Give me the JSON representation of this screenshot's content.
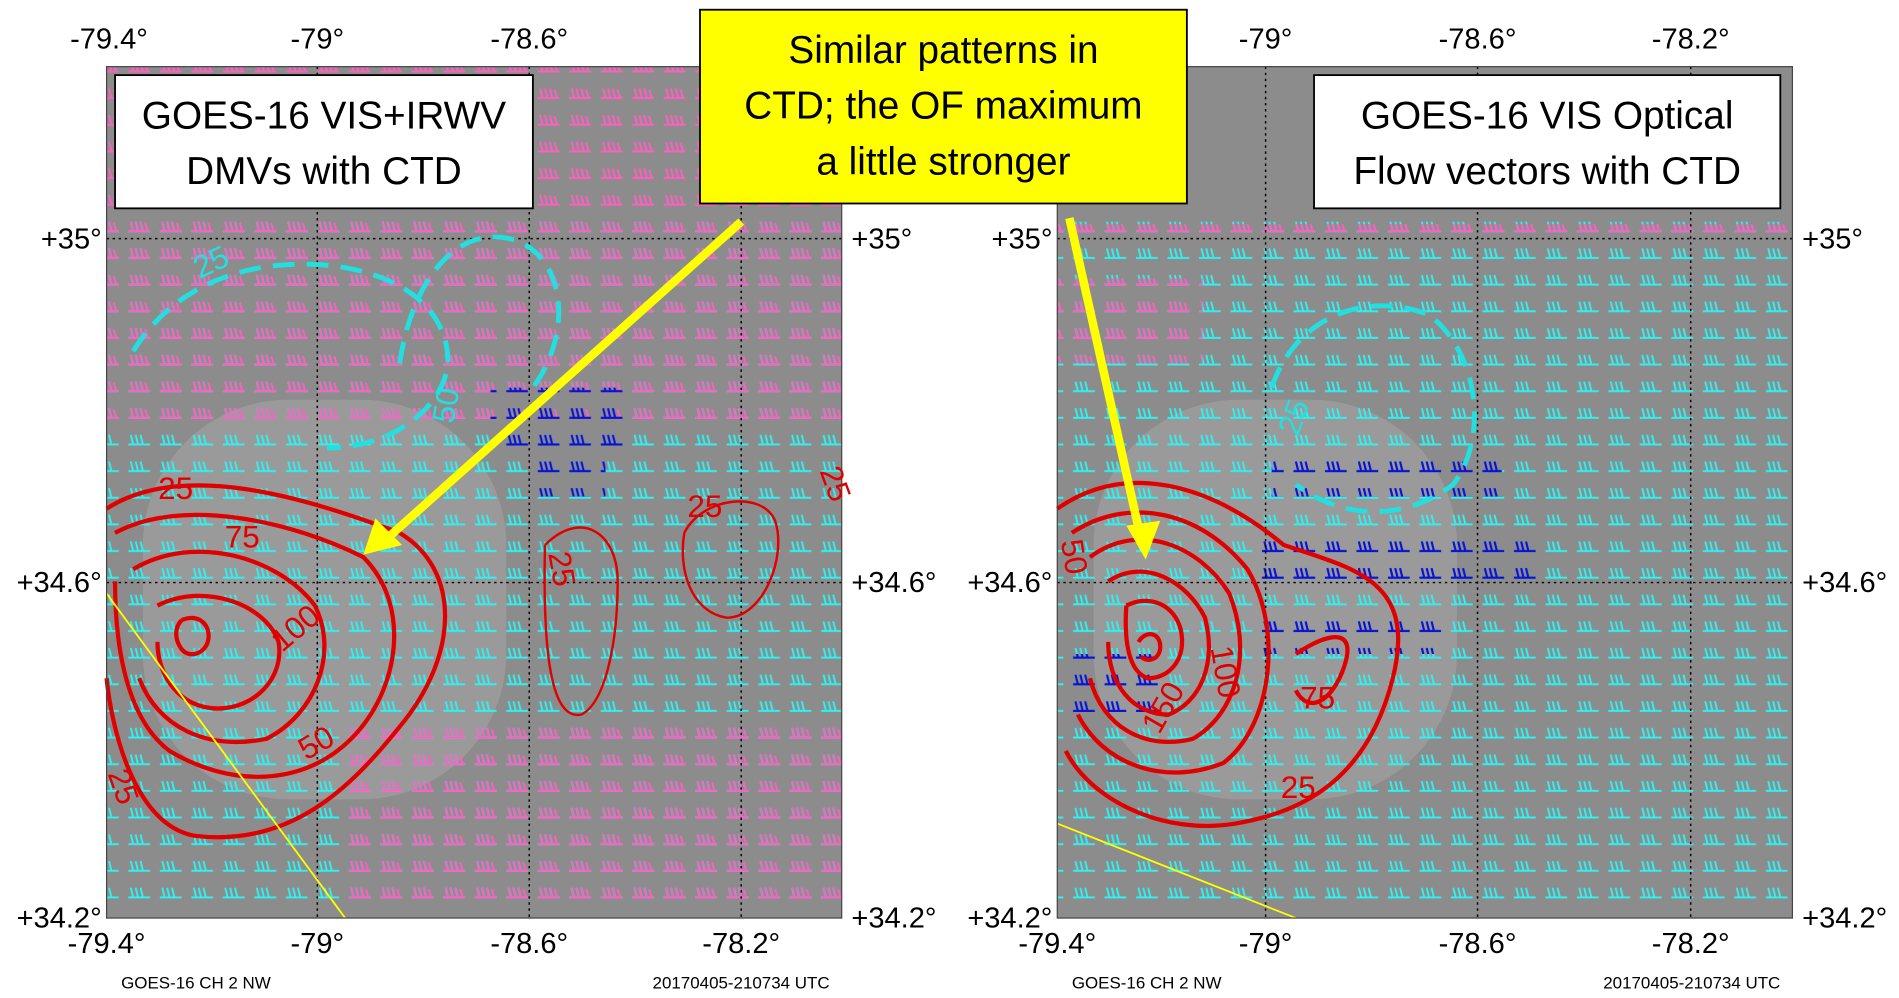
{
  "callout": {
    "lines": [
      "Similar patterns in",
      "CTD; the OF maximum",
      "a little stronger"
    ]
  },
  "panels": [
    {
      "title_lines": [
        "GOES-16 VIS+IRWV",
        "DMVs with CTD"
      ],
      "top_ticks": [
        "-79.4°",
        "-79°",
        "-78.6°"
      ],
      "bottom_ticks": [
        "-79.4°",
        "-79°",
        "-78.6°",
        "-78.2°"
      ],
      "left_ticks": [
        "+35°",
        "+34.6°",
        "+34.2°"
      ],
      "right_ticks": [
        "+35°",
        "+34.6°",
        "+34.2°"
      ],
      "contour_labels": [
        "25",
        "75",
        "100",
        "50",
        "25",
        "25",
        "25",
        "25",
        "25",
        "50"
      ],
      "footer_left": "GOES-16 CH 2 NW",
      "footer_right": "20170405-210734 UTC"
    },
    {
      "title_lines": [
        "GOES-16 VIS Optical",
        "Flow vectors with CTD"
      ],
      "top_ticks": [
        "-79°",
        "-78.6°",
        "-78.2°"
      ],
      "bottom_ticks": [
        "-79.4°",
        "-79°",
        "-78.6°",
        "-78.2°"
      ],
      "left_ticks": [
        "+35°",
        "+34.6°",
        "+34.2°"
      ],
      "right_ticks": [
        "+35°",
        "+34.6°",
        "+34.2°"
      ],
      "contour_labels": [
        "50",
        "150",
        "100",
        "75",
        "25",
        "25"
      ],
      "footer_left": "GOES-16 CH 2 NW",
      "footer_right": "20170405-210734 UTC"
    }
  ]
}
